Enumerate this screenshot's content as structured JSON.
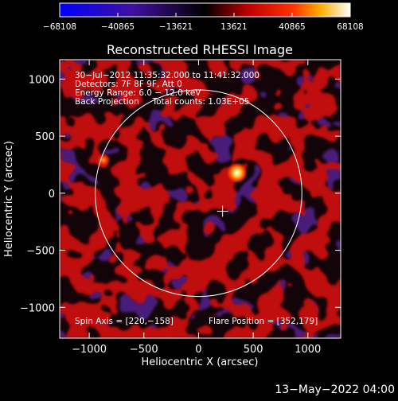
{
  "chart_data": {
    "type": "heatmap",
    "title": "Reconstructed RHESSI Image",
    "xlabel": "Heliocentric X (arcsec)",
    "ylabel": "Heliocentric Y (arcsec)",
    "xlim": [
      -1270,
      1300
    ],
    "ylim": [
      -1270,
      1170
    ],
    "xticks": [
      -1000,
      -500,
      0,
      500,
      1000
    ],
    "xtick_labels": [
      "−1000",
      "−500",
      "0",
      "500",
      "1000"
    ],
    "yticks": [
      -1000,
      -500,
      0,
      500,
      1000
    ],
    "ytick_labels": [
      "−1000",
      "−500",
      "0",
      "500",
      "1000"
    ],
    "colorbar": {
      "ticks": [
        -68108,
        -40865,
        -13621,
        13621,
        40865,
        68108
      ],
      "tick_labels": [
        "−68108",
        "−40865",
        "−13621",
        "13621",
        "40865",
        "68108"
      ],
      "range": [
        -68108,
        68108
      ]
    },
    "info_lines": [
      "30−Jul−2012 11:35:32.000 to 11:41:32.000",
      "Detectors: 7F 8F 9F, Att 0",
      "Energy Range: 6.0 − 12.0 keV",
      "Back Projection     Total counts: 1.03E+05"
    ],
    "spin_axis_label": "Spin Axis = [220,−158]",
    "flare_position_label": "Flare Position = [352,179]",
    "spin_axis": [
      220,
      -158
    ],
    "flare_position": [
      352,
      179
    ],
    "solar_disk_radius": 945,
    "bright_sources": [
      {
        "x": 352,
        "y": 179,
        "level": 68108
      },
      {
        "x": -870,
        "y": 290,
        "level": 45000
      }
    ],
    "date_stamp": "13−May−2022 04:00"
  }
}
